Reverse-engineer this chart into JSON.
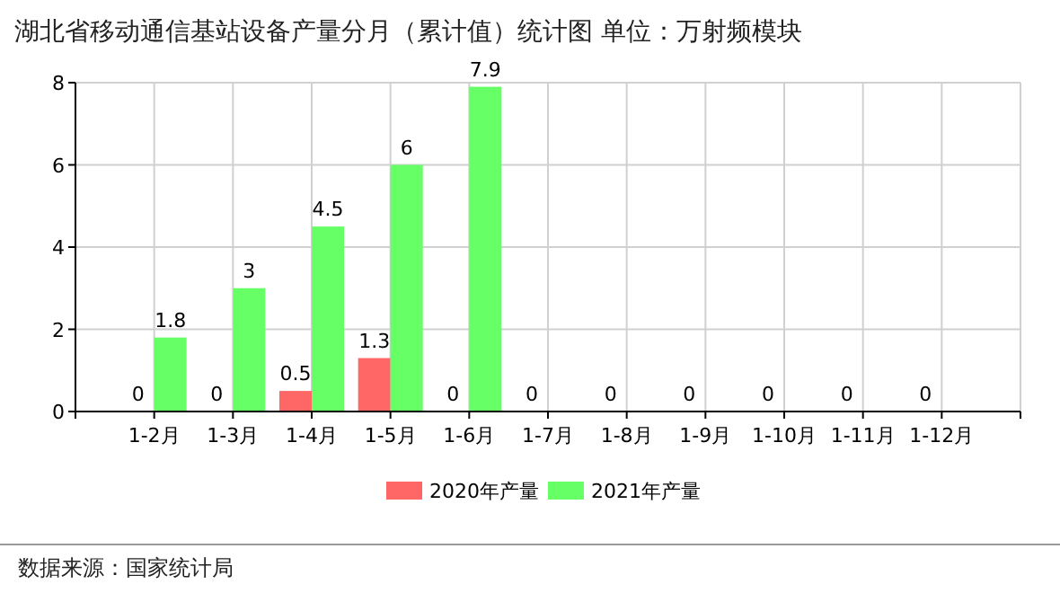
{
  "chart_data": {
    "type": "bar",
    "title": "湖北省移动通信基站设备产量分月（累计值）统计图 单位：万射频模块",
    "categories": [
      "1-2月",
      "1-3月",
      "1-4月",
      "1-5月",
      "1-6月",
      "1-7月",
      "1-8月",
      "1-9月",
      "1-10月",
      "1-11月",
      "1-12月"
    ],
    "series": [
      {
        "name": "2020年产量",
        "color": "#ff6666",
        "values": [
          0,
          0,
          0.5,
          1.3,
          0,
          0,
          0,
          0,
          0,
          0,
          0
        ]
      },
      {
        "name": "2021年产量",
        "color": "#66ff66",
        "values": [
          1.8,
          3,
          4.5,
          6,
          7.9,
          null,
          null,
          null,
          null,
          null,
          null
        ]
      }
    ],
    "ylim": [
      0,
      8
    ],
    "yticks": [
      0,
      2,
      4,
      6,
      8
    ],
    "grid": true,
    "legend": "bottom",
    "data_labels": true,
    "annotations": [
      "数据来源：国家统计局"
    ]
  }
}
